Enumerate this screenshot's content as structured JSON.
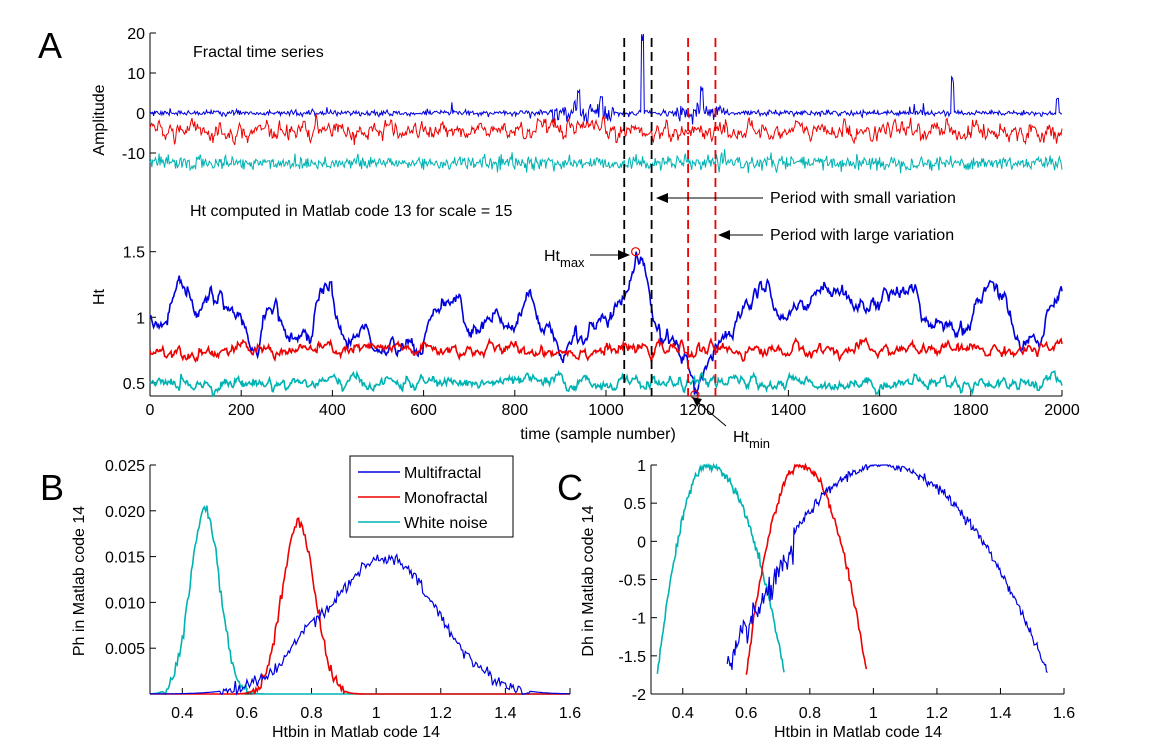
{
  "colors": {
    "multifractal": "#0000dd",
    "monofractal": "#ee0000",
    "white_noise": "#00b3b3",
    "marker_small": "#000000",
    "marker_large": "#ee0000"
  },
  "panel_letters": [
    "A",
    "B",
    "C"
  ],
  "chart_data": [
    {
      "id": "A-top",
      "type": "line",
      "title": "Fractal time series",
      "ylabel": "Amplitude",
      "xlim": [
        0,
        2000
      ],
      "ylim": [
        -15,
        20
      ],
      "yticks": [
        -10,
        0,
        10,
        20
      ],
      "series": [
        {
          "key": "multifractal",
          "offset": 0,
          "description_x": [
            0,
            2000
          ],
          "spikes": [
            [
              940,
              6
            ],
            [
              990,
              5
            ],
            [
              1080,
              20
            ],
            [
              1210,
              8
            ],
            [
              1760,
              10
            ],
            [
              1990,
              4
            ]
          ]
        },
        {
          "key": "monofractal",
          "offset": -4.5
        },
        {
          "key": "white_noise",
          "offset": -12.5
        }
      ],
      "vlines": [
        {
          "x": 1040,
          "style": "black"
        },
        {
          "x": 1100,
          "style": "black"
        },
        {
          "x": 1180,
          "style": "red"
        },
        {
          "x": 1240,
          "style": "red"
        }
      ],
      "annotations": [
        {
          "text": "Period with small variation",
          "target_x": 1100
        },
        {
          "text": "Period with large variation",
          "target_x": 1240
        }
      ]
    },
    {
      "id": "A-bottom",
      "type": "line",
      "title": "Ht computed in Matlab code 13 for scale = 15",
      "xlabel": "time (sample number)",
      "ylabel": "Ht",
      "xlim": [
        0,
        2000
      ],
      "ylim": [
        0.4,
        1.65
      ],
      "xticks": [
        0,
        200,
        400,
        600,
        800,
        1000,
        1200,
        1400,
        1600,
        1800,
        2000
      ],
      "yticks": [
        0.5,
        1,
        1.5
      ],
      "series": [
        {
          "key": "multifractal",
          "mean": 1.0
        },
        {
          "key": "monofractal",
          "mean": 0.75
        },
        {
          "key": "white_noise",
          "mean": 0.5
        }
      ],
      "markers": [
        {
          "label": "Ht",
          "sub": "max",
          "x": 1065,
          "y": 1.5
        },
        {
          "label": "Ht",
          "sub": "min",
          "x": 1195,
          "y": 0.41
        }
      ]
    },
    {
      "id": "B",
      "type": "line",
      "xlabel": "Htbin in Matlab code 14",
      "ylabel": "Ph in Matlab code 14",
      "xlim": [
        0.3,
        1.6
      ],
      "ylim": [
        0,
        0.025
      ],
      "xticks": [
        0.4,
        0.6,
        0.8,
        1,
        1.2,
        1.4,
        1.6
      ],
      "yticks": [
        0.005,
        0.01,
        0.015,
        0.02,
        0.025
      ],
      "ytick_labels": [
        "0.005",
        "0.010",
        "0.015",
        "0.020",
        "0.025"
      ],
      "legend": {
        "placement": "top-right",
        "entries": [
          "Multifractal",
          "Monofractal",
          "White noise"
        ]
      },
      "series": [
        {
          "key": "white_noise",
          "name": "White noise",
          "peak_x": 0.47,
          "peak_y": 0.0203,
          "sigma": 0.045
        },
        {
          "key": "monofractal",
          "name": "Monofractal",
          "peak_x": 0.76,
          "peak_y": 0.0188,
          "sigma": 0.05
        },
        {
          "key": "multifractal",
          "name": "Multifractal",
          "peak_x": 1.03,
          "peak_y": 0.0148,
          "sigma": 0.16
        }
      ]
    },
    {
      "id": "C",
      "type": "line",
      "xlabel": "Htbin in Matlab code 14",
      "ylabel": "Dh in Matlab code 14",
      "xlim": [
        0.3,
        1.6
      ],
      "ylim": [
        -2,
        1
      ],
      "xticks": [
        0.4,
        0.6,
        0.8,
        1,
        1.2,
        1.4,
        1.6
      ],
      "yticks": [
        -2,
        -1.5,
        -1,
        -0.5,
        0,
        0.5,
        1
      ],
      "series": [
        {
          "key": "white_noise",
          "peak_x": 0.48,
          "range": [
            0.32,
            0.72
          ]
        },
        {
          "key": "monofractal",
          "peak_x": 0.77,
          "range": [
            0.6,
            0.98
          ]
        },
        {
          "key": "multifractal",
          "peak_x": 1.03,
          "range": [
            0.54,
            1.55
          ]
        }
      ]
    }
  ]
}
